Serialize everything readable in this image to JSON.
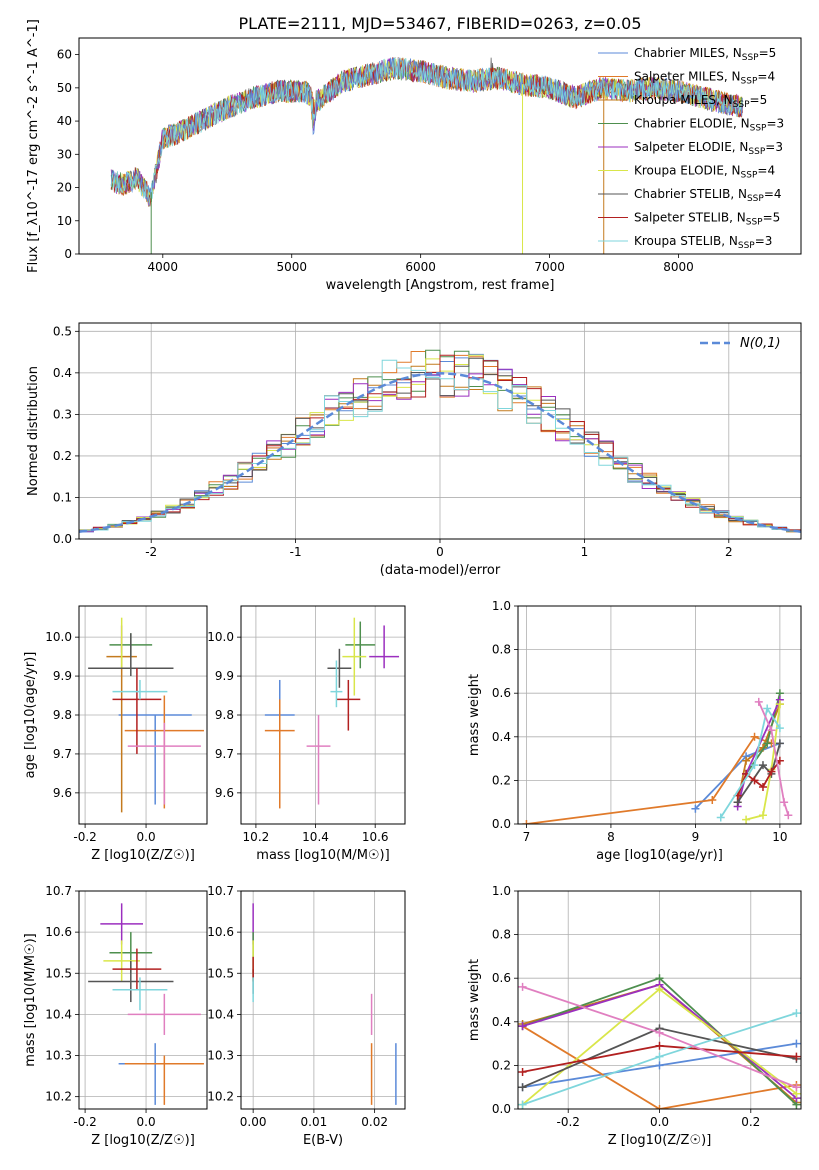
{
  "figure_title": "PLATE=2111, MJD=53467, FIBERID=0263, z=0.05",
  "series_styles": [
    {
      "name": "Chabrier MILES, N_SSP=5",
      "color": "#5b8ad8"
    },
    {
      "name": "Salpeter MILES, N_SSP=4",
      "color": "#e07a2a"
    },
    {
      "name": "Kroupa MILES, N_SSP=5",
      "color": "#c47a1e"
    },
    {
      "name": "Chabrier ELODIE, N_SSP=3",
      "color": "#4e8f4e"
    },
    {
      "name": "Salpeter ELODIE, N_SSP=3",
      "color": "#9b2fbf"
    },
    {
      "name": "Kroupa ELODIE, N_SSP=4",
      "color": "#d9e64a"
    },
    {
      "name": "Chabrier STELIB, N_SSP=4",
      "color": "#555555"
    },
    {
      "name": "Salpeter STELIB, N_SSP=5",
      "color": "#b22020"
    },
    {
      "name": "Kroupa STELIB, N_SSP=3",
      "color": "#7fd6dc"
    }
  ],
  "chart_data": [
    {
      "type": "line",
      "xlabel": "wavelength [Angstrom, rest frame]",
      "ylabel": "Flux [f_λ10^-17 erg cm^-2 s^-1 A^-1]",
      "xlim": [
        3350,
        8950
      ],
      "ylim": [
        0,
        65
      ],
      "xticks": [
        4000,
        5000,
        6000,
        7000,
        8000
      ],
      "yticks": [
        0,
        10,
        20,
        30,
        40,
        50,
        60
      ],
      "grid": false,
      "legend_position": "upper-right",
      "legend": [
        {
          "base": "Chabrier MILES, N",
          "sub": "SSP",
          "tail": "=5"
        },
        {
          "base": "Salpeter MILES, N",
          "sub": "SSP",
          "tail": "=4"
        },
        {
          "base": "Kroupa MILES, N",
          "sub": "SSP",
          "tail": "=5"
        },
        {
          "base": "Chabrier ELODIE, N",
          "sub": "SSP",
          "tail": "=3"
        },
        {
          "base": "Salpeter ELODIE, N",
          "sub": "SSP",
          "tail": "=3"
        },
        {
          "base": "Kroupa ELODIE, N",
          "sub": "SSP",
          "tail": "=4"
        },
        {
          "base": "Chabrier STELIB, N",
          "sub": "SSP",
          "tail": "=4"
        },
        {
          "base": "Salpeter STELIB, N",
          "sub": "SSP",
          "tail": "=5"
        },
        {
          "base": "Kroupa STELIB, N",
          "sub": "SSP",
          "tail": "=3"
        }
      ],
      "continuum": [
        [
          3600,
          22
        ],
        [
          3700,
          21
        ],
        [
          3800,
          23
        ],
        [
          3900,
          17
        ],
        [
          3950,
          25
        ],
        [
          4000,
          35
        ],
        [
          4100,
          36
        ],
        [
          4300,
          40
        ],
        [
          4500,
          44
        ],
        [
          4700,
          47
        ],
        [
          4900,
          49
        ],
        [
          5100,
          49
        ],
        [
          5200,
          46
        ],
        [
          5400,
          52
        ],
        [
          5600,
          54
        ],
        [
          5800,
          56
        ],
        [
          6000,
          55
        ],
        [
          6200,
          53
        ],
        [
          6400,
          52
        ],
        [
          6600,
          53
        ],
        [
          6800,
          51
        ],
        [
          7000,
          50
        ],
        [
          7200,
          47
        ],
        [
          7400,
          50
        ],
        [
          7600,
          49
        ],
        [
          7800,
          50
        ],
        [
          8000,
          49
        ],
        [
          8200,
          47
        ],
        [
          8400,
          45
        ],
        [
          8500,
          44
        ]
      ],
      "drops": [
        {
          "x": 3910,
          "y": 0
        },
        {
          "x": 6790,
          "y": 0
        },
        {
          "x": 7420,
          "y": 0
        }
      ]
    },
    {
      "type": "histogram",
      "xlabel": "(data-model)/error",
      "ylabel": "Normed distribution",
      "xlim": [
        -2.5,
        2.5
      ],
      "ylim": [
        0,
        0.52
      ],
      "xticks": [
        -2,
        -1,
        0,
        1,
        2
      ],
      "yticks": [
        0.0,
        0.1,
        0.2,
        0.3,
        0.4,
        0.5
      ],
      "grid": true,
      "bin_width": 0.1,
      "reference_curve": {
        "label": "N(0,1)",
        "type": "gaussian",
        "mean": 0,
        "sigma": 1,
        "color": "#5b8ad8"
      }
    },
    {
      "type": "scatter",
      "xlabel": "Z [log10(Z/Z☉)]",
      "ylabel": "age [log10(age/yr)]",
      "xlim": [
        -0.22,
        0.2
      ],
      "ylim": [
        9.52,
        10.08
      ],
      "xticks": [
        -0.2,
        0.0
      ],
      "yticks": [
        9.6,
        9.7,
        9.8,
        9.9,
        10.0
      ],
      "grid": true,
      "points": [
        {
          "series": 0,
          "x": 0.03,
          "y": 9.8,
          "xerr": 0.12,
          "yerr_lo": 0.23,
          "yerr_hi": 0.0
        },
        {
          "series": 1,
          "x": 0.06,
          "y": 9.76,
          "xerr": 0.13,
          "yerr_lo": 0.2,
          "yerr_hi": 0.09
        },
        {
          "series": 2,
          "x": -0.08,
          "y": 9.95,
          "xerr": 0.05,
          "yerr_lo": 0.4,
          "yerr_hi": 0.05
        },
        {
          "series": 3,
          "x": -0.05,
          "y": 9.98,
          "xerr": 0.07,
          "yerr_lo": 0.03,
          "yerr_hi": 0.03
        },
        {
          "series": 4,
          "x": -0.08,
          "y": 10.0,
          "xerr": 0.0,
          "yerr_lo": 0.04,
          "yerr_hi": 0.03
        },
        {
          "series": 5,
          "x": -0.08,
          "y": 9.97,
          "xerr": 0.0,
          "yerr_lo": 0.05,
          "yerr_hi": 0.08
        },
        {
          "series": 6,
          "x": -0.05,
          "y": 9.92,
          "xerr": 0.14,
          "yerr_lo": 0.02,
          "yerr_hi": 0.09
        },
        {
          "series": 7,
          "x": -0.03,
          "y": 9.84,
          "xerr": 0.08,
          "yerr_lo": 0.14,
          "yerr_hi": 0.08
        },
        {
          "series": 8,
          "x": -0.02,
          "y": 9.86,
          "xerr": 0.09,
          "yerr_lo": 0.02,
          "yerr_hi": 0.03
        },
        {
          "series": 9,
          "x": 0.06,
          "y": 9.72,
          "xerr": 0.12,
          "yerr_lo": 0.15,
          "yerr_hi": 0.06
        }
      ]
    },
    {
      "type": "scatter",
      "xlabel": "mass [log10(M/M☉)]",
      "ylabel": "",
      "xlim": [
        10.15,
        10.7
      ],
      "ylim": [
        9.52,
        10.08
      ],
      "xticks": [
        10.2,
        10.4,
        10.6
      ],
      "yticks": [
        9.6,
        9.7,
        9.8,
        9.9,
        10.0
      ],
      "grid": true,
      "points": [
        {
          "series": 0,
          "x": 10.28,
          "y": 9.8,
          "xerr": 0.05,
          "yerr_lo": 0.0,
          "yerr_hi": 0.09
        },
        {
          "series": 1,
          "x": 10.28,
          "y": 9.76,
          "xerr": 0.05,
          "yerr_lo": 0.2,
          "yerr_hi": 0.08
        },
        {
          "series": 4,
          "x": 10.63,
          "y": 9.95,
          "xerr": 0.05,
          "yerr_lo": 0.03,
          "yerr_hi": 0.08
        },
        {
          "series": 3,
          "x": 10.55,
          "y": 9.98,
          "xerr": 0.05,
          "yerr_lo": 0.06,
          "yerr_hi": 0.06
        },
        {
          "series": 5,
          "x": 10.53,
          "y": 9.95,
          "xerr": 0.04,
          "yerr_lo": 0.1,
          "yerr_hi": 0.1
        },
        {
          "series": 6,
          "x": 10.48,
          "y": 9.92,
          "xerr": 0.04,
          "yerr_lo": 0.05,
          "yerr_hi": 0.05
        },
        {
          "series": 7,
          "x": 10.51,
          "y": 9.84,
          "xerr": 0.04,
          "yerr_lo": 0.08,
          "yerr_hi": 0.05
        },
        {
          "series": 8,
          "x": 10.47,
          "y": 9.86,
          "xerr": 0.02,
          "yerr_lo": 0.04,
          "yerr_hi": 0.08
        },
        {
          "series": 9,
          "x": 10.41,
          "y": 9.72,
          "xerr": 0.04,
          "yerr_lo": 0.15,
          "yerr_hi": 0.08
        }
      ]
    },
    {
      "type": "line",
      "xlabel": "age [log10(age/yr)]",
      "ylabel": "mass weight",
      "xlim": [
        6.9,
        10.25
      ],
      "ylim": [
        0,
        1
      ],
      "xticks": [
        7,
        8,
        9,
        10
      ],
      "yticks": [
        0.0,
        0.2,
        0.4,
        0.6,
        0.8,
        1.0
      ],
      "grid": true
    },
    {
      "type": "scatter",
      "xlabel": "Z [log10(Z/Z☉)]",
      "ylabel": "mass [log10(M/M☉)]",
      "xlim": [
        -0.22,
        0.2
      ],
      "ylim": [
        10.17,
        10.7
      ],
      "xticks": [
        -0.2,
        0.0
      ],
      "yticks": [
        10.2,
        10.3,
        10.4,
        10.5,
        10.6,
        10.7
      ],
      "grid": true,
      "points": [
        {
          "series": 0,
          "x": 0.03,
          "y": 10.28,
          "xerr": 0.12,
          "yerr_lo": 0.1,
          "yerr_hi": 0.05
        },
        {
          "series": 1,
          "x": 0.06,
          "y": 10.28,
          "xerr": 0.13,
          "yerr_lo": 0.1,
          "yerr_hi": 0.02
        },
        {
          "series": 4,
          "x": -0.08,
          "y": 10.62,
          "xerr": 0.07,
          "yerr_lo": 0.05,
          "yerr_hi": 0.05
        },
        {
          "series": 3,
          "x": -0.05,
          "y": 10.55,
          "xerr": 0.07,
          "yerr_lo": 0.05,
          "yerr_hi": 0.05
        },
        {
          "series": 5,
          "x": -0.08,
          "y": 10.53,
          "xerr": 0.06,
          "yerr_lo": 0.05,
          "yerr_hi": 0.05
        },
        {
          "series": 6,
          "x": -0.05,
          "y": 10.48,
          "xerr": 0.14,
          "yerr_lo": 0.05,
          "yerr_hi": 0.05
        },
        {
          "series": 7,
          "x": -0.03,
          "y": 10.51,
          "xerr": 0.08,
          "yerr_lo": 0.05,
          "yerr_hi": 0.05
        },
        {
          "series": 8,
          "x": -0.02,
          "y": 10.46,
          "xerr": 0.09,
          "yerr_lo": 0.05,
          "yerr_hi": 0.03
        },
        {
          "series": 9,
          "x": 0.06,
          "y": 10.4,
          "xerr": 0.12,
          "yerr_lo": 0.05,
          "yerr_hi": 0.05
        }
      ]
    },
    {
      "type": "scatter",
      "xlabel": "E(B-V)",
      "ylabel": "",
      "xlim": [
        -0.002,
        0.025
      ],
      "ylim": [
        10.17,
        10.7
      ],
      "xticks": [
        0.0,
        0.01,
        0.02
      ],
      "yticks": [
        10.2,
        10.3,
        10.4,
        10.5,
        10.6,
        10.7
      ],
      "grid": true,
      "points": [
        {
          "series": 0,
          "x": 0.0235,
          "y": 10.28,
          "xerr": 0.0,
          "yerr_lo": 0.1,
          "yerr_hi": 0.05
        },
        {
          "series": 1,
          "x": 0.0195,
          "y": 10.28,
          "xerr": 0.0,
          "yerr_lo": 0.1,
          "yerr_hi": 0.05
        },
        {
          "series": 9,
          "x": 0.0195,
          "y": 10.4,
          "xerr": 0.0,
          "yerr_lo": 0.05,
          "yerr_hi": 0.05
        },
        {
          "series": 4,
          "x": 0.0,
          "y": 10.62,
          "xerr": 0.0,
          "yerr_lo": 0.05,
          "yerr_hi": 0.05
        },
        {
          "series": 3,
          "x": 0.0,
          "y": 10.55,
          "xerr": 0.0,
          "yerr_lo": 0.05,
          "yerr_hi": 0.05
        },
        {
          "series": 5,
          "x": 0.0,
          "y": 10.53,
          "xerr": 0.0,
          "yerr_lo": 0.05,
          "yerr_hi": 0.05
        },
        {
          "series": 6,
          "x": 0.0,
          "y": 10.48,
          "xerr": 0.0,
          "yerr_lo": 0.03,
          "yerr_hi": 0.03
        },
        {
          "series": 7,
          "x": 0.0,
          "y": 10.51,
          "xerr": 0.0,
          "yerr_lo": 0.03,
          "yerr_hi": 0.03
        },
        {
          "series": 8,
          "x": 0.0,
          "y": 10.46,
          "xerr": 0.0,
          "yerr_lo": 0.03,
          "yerr_hi": 0.03
        }
      ]
    },
    {
      "type": "line",
      "xlabel": "Z [log10(Z/Z☉)]",
      "ylabel": "mass weight",
      "xlim": [
        -0.31,
        0.31
      ],
      "ylim": [
        0,
        1
      ],
      "xticks": [
        -0.2,
        0.0,
        0.2
      ],
      "yticks": [
        0.0,
        0.2,
        0.4,
        0.6,
        0.8,
        1.0
      ],
      "grid": true
    }
  ],
  "age_weights": [
    {
      "series": 0,
      "points": [
        [
          9.0,
          0.07
        ],
        [
          9.6,
          0.31
        ],
        [
          10.0,
          0.37
        ]
      ]
    },
    {
      "series": 1,
      "points": [
        [
          7.0,
          0.0
        ],
        [
          9.2,
          0.11
        ],
        [
          9.7,
          0.4
        ],
        [
          9.9,
          0.37
        ]
      ]
    },
    {
      "series": 2,
      "points": [
        [
          9.5,
          0.1
        ],
        [
          9.6,
          0.29
        ],
        [
          9.8,
          0.35
        ],
        [
          10.0,
          0.55
        ]
      ]
    },
    {
      "series": 3,
      "points": [
        [
          9.6,
          0.23
        ],
        [
          9.85,
          0.37
        ],
        [
          10.0,
          0.6
        ]
      ]
    },
    {
      "series": 4,
      "points": [
        [
          9.5,
          0.08
        ],
        [
          9.6,
          0.23
        ],
        [
          10.0,
          0.57
        ]
      ]
    },
    {
      "series": 5,
      "points": [
        [
          9.6,
          0.02
        ],
        [
          9.8,
          0.04
        ],
        [
          9.9,
          0.25
        ],
        [
          10.0,
          0.55
        ]
      ]
    },
    {
      "series": 6,
      "points": [
        [
          9.5,
          0.1
        ],
        [
          9.8,
          0.27
        ],
        [
          9.9,
          0.23
        ],
        [
          10.0,
          0.37
        ]
      ]
    },
    {
      "series": 7,
      "points": [
        [
          9.5,
          0.13
        ],
        [
          9.6,
          0.23
        ],
        [
          9.7,
          0.2
        ],
        [
          9.8,
          0.17
        ],
        [
          9.9,
          0.24
        ],
        [
          10.0,
          0.29
        ]
      ]
    },
    {
      "series": 8,
      "points": [
        [
          9.3,
          0.03
        ],
        [
          9.7,
          0.27
        ],
        [
          9.85,
          0.53
        ],
        [
          10.0,
          0.44
        ]
      ]
    },
    {
      "series": 9,
      "points": [
        [
          9.75,
          0.56
        ],
        [
          9.9,
          0.43
        ],
        [
          10.05,
          0.1
        ],
        [
          10.1,
          0.04
        ]
      ]
    }
  ],
  "z_weights": [
    {
      "series": 0,
      "points": [
        [
          -0.3,
          0.1
        ],
        [
          0.0,
          0.2
        ],
        [
          0.3,
          0.3
        ]
      ]
    },
    {
      "series": 1,
      "points": [
        [
          -0.3,
          0.38
        ],
        [
          0.0,
          0.0
        ],
        [
          0.3,
          0.11
        ]
      ]
    },
    {
      "series": 2,
      "points": [
        [
          -0.3,
          0.39
        ],
        [
          0.0,
          0.57
        ],
        [
          0.3,
          0.03
        ]
      ]
    },
    {
      "series": 3,
      "points": [
        [
          -0.3,
          0.38
        ],
        [
          0.0,
          0.6
        ],
        [
          0.3,
          0.02
        ]
      ]
    },
    {
      "series": 4,
      "points": [
        [
          -0.3,
          0.38
        ],
        [
          0.0,
          0.57
        ],
        [
          0.3,
          0.05
        ]
      ]
    },
    {
      "series": 5,
      "points": [
        [
          -0.3,
          0.02
        ],
        [
          0.0,
          0.55
        ],
        [
          0.3,
          0.07
        ]
      ]
    },
    {
      "series": 6,
      "points": [
        [
          -0.3,
          0.1
        ],
        [
          0.0,
          0.37
        ],
        [
          0.3,
          0.23
        ]
      ]
    },
    {
      "series": 7,
      "points": [
        [
          -0.3,
          0.17
        ],
        [
          0.0,
          0.29
        ],
        [
          0.3,
          0.24
        ]
      ]
    },
    {
      "series": 8,
      "points": [
        [
          -0.3,
          0.02
        ],
        [
          0.0,
          0.24
        ],
        [
          0.3,
          0.44
        ]
      ]
    },
    {
      "series": 9,
      "points": [
        [
          -0.3,
          0.56
        ],
        [
          0.0,
          0.35
        ],
        [
          0.3,
          0.1
        ]
      ]
    }
  ],
  "extra_series_color": "#e07fc0"
}
